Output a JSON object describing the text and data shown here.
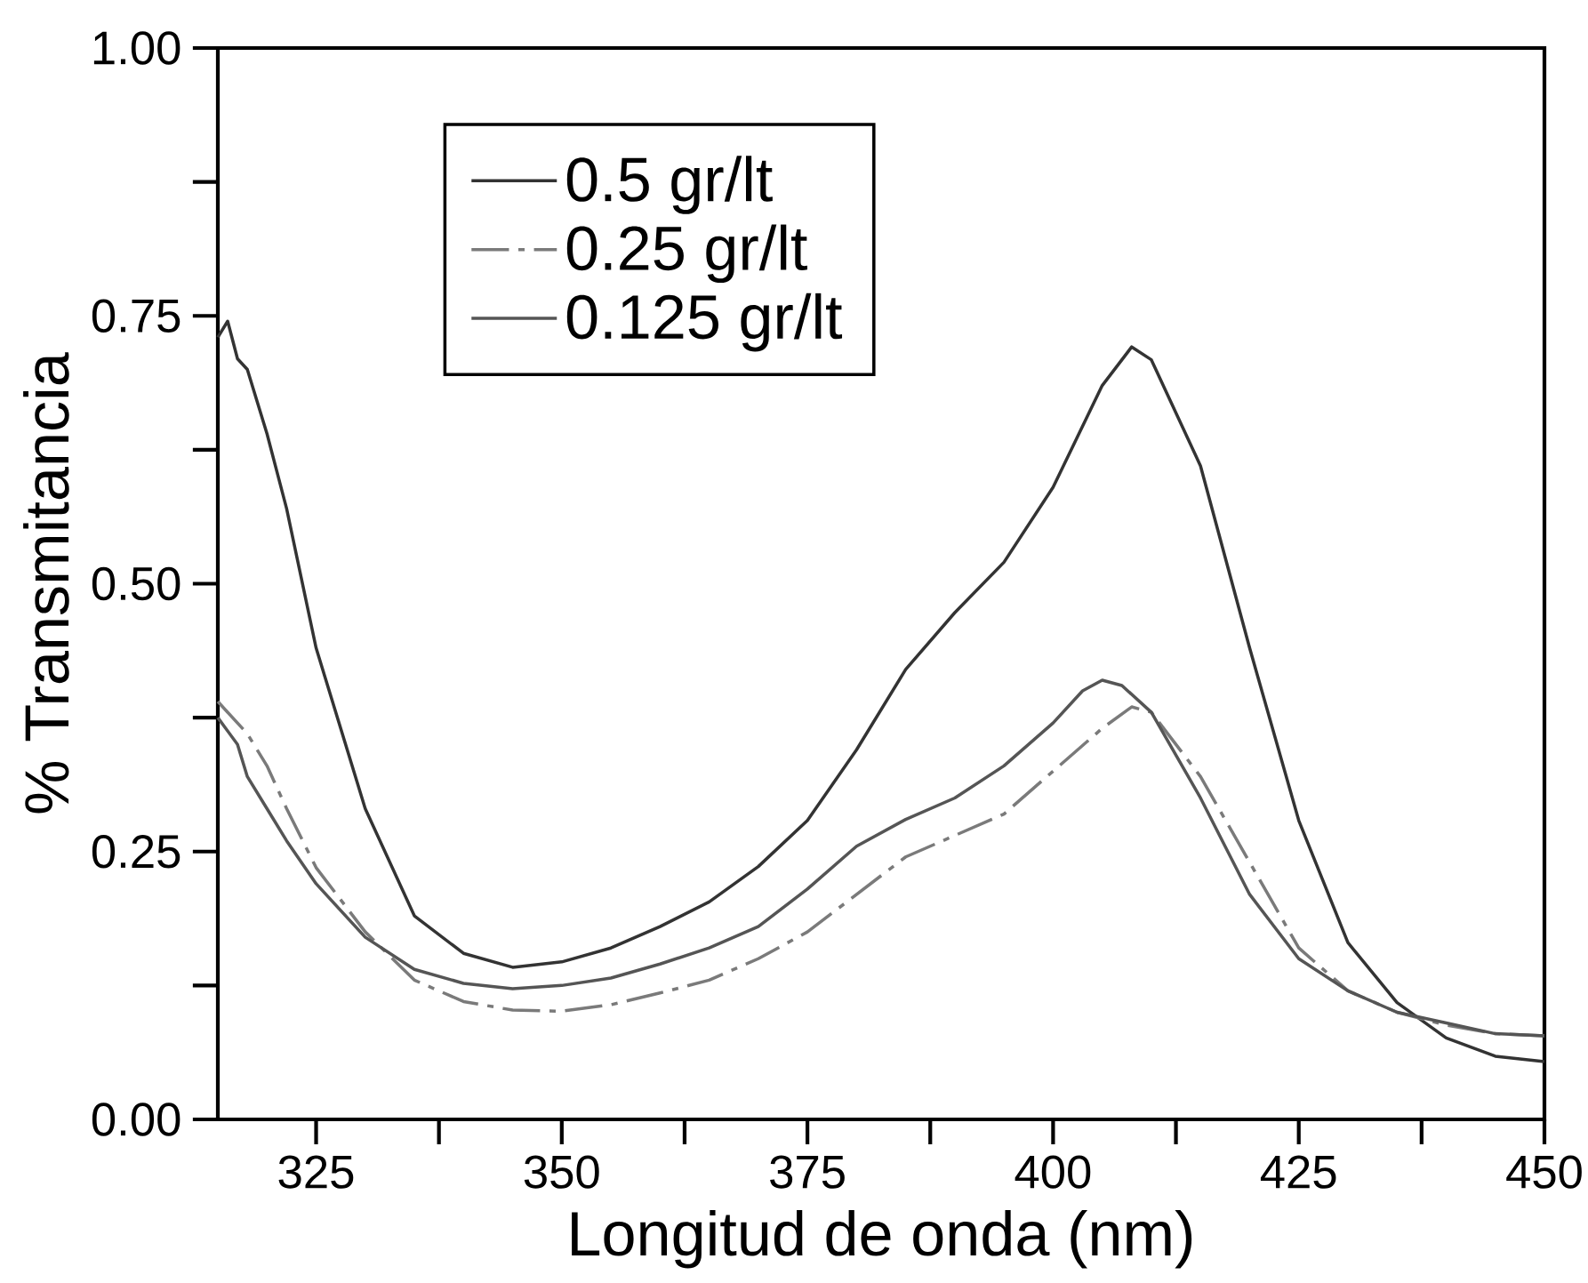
{
  "chart_data": {
    "type": "line",
    "xlabel": "Longitud de onda (nm)",
    "ylabel": "% Transmitancia",
    "xlim": [
      315,
      450
    ],
    "ylim": [
      0,
      1
    ],
    "xticks": [
      325,
      350,
      375,
      400,
      425,
      450
    ],
    "yticks": [
      {
        "value": 0,
        "label": "0.00"
      },
      0.25,
      {
        "value": 0.5,
        "label": "0.50"
      },
      0.75,
      {
        "value": 1,
        "label": "1.00"
      }
    ],
    "legend": "top left",
    "grid": false,
    "series": [
      {
        "name": "0.5 gr/lt",
        "color": "#333333",
        "line_style": "solid",
        "x": [
          315,
          316,
          317,
          318,
          320,
          322,
          325,
          330,
          335,
          340,
          345,
          350,
          355,
          360,
          365,
          370,
          375,
          380,
          385,
          390,
          395,
          400,
          405,
          408,
          410,
          415,
          420,
          425,
          430,
          435,
          440,
          445,
          450
        ],
        "values": [
          0.73,
          0.745,
          0.71,
          0.7,
          0.64,
          0.57,
          0.44,
          0.29,
          0.19,
          0.155,
          0.142,
          0.147,
          0.16,
          0.18,
          0.203,
          0.236,
          0.279,
          0.345,
          0.42,
          0.473,
          0.52,
          0.59,
          0.685,
          0.721,
          0.709,
          0.61,
          0.44,
          0.279,
          0.165,
          0.109,
          0.076,
          0.059,
          0.054
        ]
      },
      {
        "name": "0.25 gr/lt",
        "color": "#7a7a7a",
        "line_style": "dashed",
        "x": [
          315,
          318,
          320,
          322,
          325,
          330,
          335,
          340,
          345,
          350,
          355,
          360,
          365,
          370,
          375,
          380,
          385,
          390,
          395,
          400,
          405,
          408,
          410,
          415,
          420,
          425,
          430,
          435,
          440,
          445,
          450
        ],
        "values": [
          0.39,
          0.36,
          0.33,
          0.29,
          0.235,
          0.175,
          0.13,
          0.11,
          0.102,
          0.101,
          0.107,
          0.118,
          0.13,
          0.15,
          0.175,
          0.21,
          0.245,
          0.265,
          0.285,
          0.325,
          0.365,
          0.385,
          0.38,
          0.32,
          0.24,
          0.16,
          0.12,
          0.1,
          0.088,
          0.08,
          0.078
        ]
      },
      {
        "name": "0.125 gr/lt",
        "color": "#555555",
        "line_style": "solid",
        "x": [
          315,
          317,
          318,
          320,
          322,
          325,
          330,
          335,
          340,
          345,
          350,
          355,
          360,
          365,
          370,
          375,
          380,
          385,
          390,
          395,
          400,
          403,
          405,
          407,
          410,
          415,
          420,
          425,
          430,
          435,
          440,
          445,
          450
        ],
        "values": [
          0.375,
          0.35,
          0.32,
          0.29,
          0.26,
          0.22,
          0.17,
          0.14,
          0.127,
          0.122,
          0.125,
          0.132,
          0.145,
          0.16,
          0.18,
          0.215,
          0.255,
          0.28,
          0.3,
          0.33,
          0.37,
          0.4,
          0.41,
          0.405,
          0.38,
          0.3,
          0.21,
          0.15,
          0.12,
          0.1,
          0.09,
          0.08,
          0.078
        ]
      }
    ]
  }
}
